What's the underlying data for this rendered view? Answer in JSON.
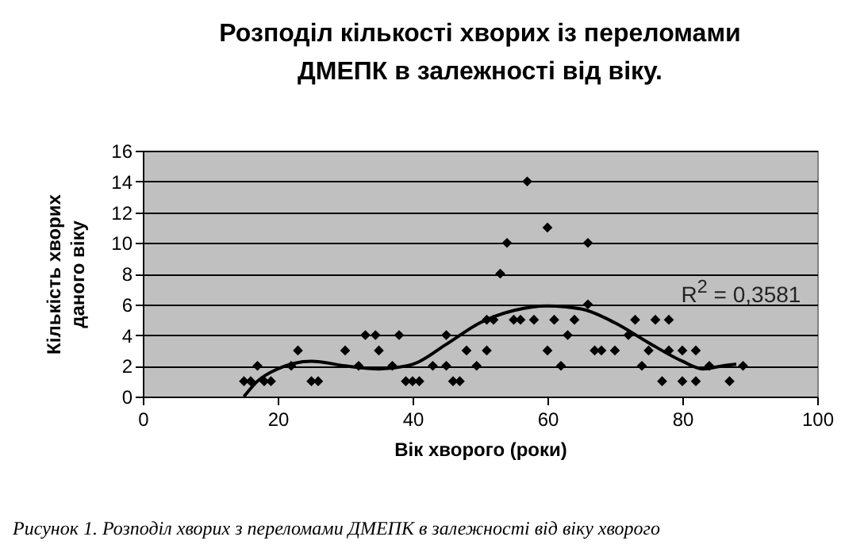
{
  "chart_data": {
    "type": "scatter",
    "title": "Розподіл кількості  хворих із переломами\nДМЕПК в залежності від віку.",
    "xlabel": "Вік хворого (роки)",
    "ylabel": "Кількість хворих\nданого віку",
    "xlim": [
      0,
      100
    ],
    "xticks": [
      0,
      20,
      40,
      60,
      80,
      100
    ],
    "ylim": [
      0,
      16
    ],
    "yticks": [
      0,
      2,
      4,
      6,
      8,
      10,
      12,
      14,
      16
    ],
    "grid": "y",
    "series": [
      {
        "marker": "diamond",
        "color": "#000000",
        "x": [
          15,
          16,
          17,
          18,
          19,
          22,
          23,
          25,
          26,
          30,
          32,
          33,
          34.5,
          35,
          37,
          38,
          39,
          40,
          41,
          43,
          45,
          45,
          46,
          47,
          48,
          49.5,
          51,
          51,
          52,
          53,
          54,
          55,
          56,
          57,
          58,
          60,
          60,
          61,
          62,
          63,
          64,
          66,
          66,
          67,
          68,
          70,
          72,
          73,
          74,
          75,
          76,
          77,
          78,
          78,
          80,
          80,
          82,
          82,
          84,
          87,
          89
        ],
        "values": [
          1,
          1,
          2,
          1,
          1,
          2,
          3,
          1,
          1,
          3,
          2,
          4,
          4,
          3,
          2,
          4,
          1,
          1,
          1,
          2,
          2,
          4,
          1,
          1,
          3,
          2,
          5,
          3,
          5,
          8,
          10,
          5,
          5,
          14,
          5,
          3,
          11,
          5,
          2,
          4,
          5,
          6,
          10,
          3,
          3,
          3,
          4,
          5,
          2,
          3,
          5,
          1,
          3,
          5,
          1,
          3,
          3,
          1,
          2,
          1,
          2
        ]
      },
      {
        "type": "line",
        "color": "#000000",
        "x": [
          15,
          17,
          20,
          25,
          30,
          35,
          40,
          45,
          50,
          55,
          60,
          65,
          70,
          75,
          80,
          83,
          86,
          88
        ],
        "values": [
          0,
          1,
          1.8,
          2.3,
          2,
          1.8,
          2.1,
          3.4,
          4.8,
          5.6,
          5.9,
          5.7,
          4.8,
          3.5,
          2.3,
          1.8,
          2,
          2.1
        ]
      }
    ],
    "annotations": [
      "R$^{2}$ = 0,3581",
      "Рисунок 1. Розподіл хворих з переломами ДМЕПК в залежності від віку хворого"
    ]
  }
}
